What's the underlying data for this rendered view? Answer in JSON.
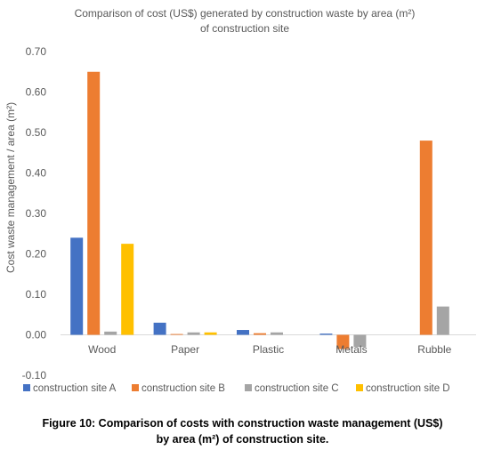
{
  "chart_data": {
    "type": "bar",
    "title_line1": "Comparison of cost (US$)  generated  by construction waste by area (m²)",
    "title_line2": "of construction site",
    "ylabel": "Cost waste management  / area (m²)",
    "xlabel": "",
    "categories": [
      "Wood",
      "Paper",
      "Plastic",
      "Metals",
      "Rubble"
    ],
    "ylim": [
      -0.1,
      0.7
    ],
    "yticks": [
      "-0.10",
      "0.00",
      "0.10",
      "0.20",
      "0.30",
      "0.40",
      "0.50",
      "0.60",
      "0.70"
    ],
    "grid": false,
    "legend_position": "bottom",
    "series": [
      {
        "name": "construction site A",
        "color": "#4472C4",
        "values": [
          0.24,
          0.03,
          0.012,
          0.003,
          0.0
        ]
      },
      {
        "name": "construction site B",
        "color": "#ED7D31",
        "values": [
          0.65,
          0.002,
          0.004,
          -0.035,
          0.48
        ]
      },
      {
        "name": "construction site C",
        "color": "#A5A5A5",
        "values": [
          0.008,
          0.006,
          0.006,
          -0.03,
          0.07
        ]
      },
      {
        "name": "construction site D",
        "color": "#FFC000",
        "values": [
          0.225,
          0.006,
          0.0,
          0.0,
          0.0
        ]
      }
    ]
  },
  "caption": {
    "line1": "Figure 10:  Comparison of costs with construction waste management (US$)",
    "line2": "by area (m²) of construction site."
  }
}
